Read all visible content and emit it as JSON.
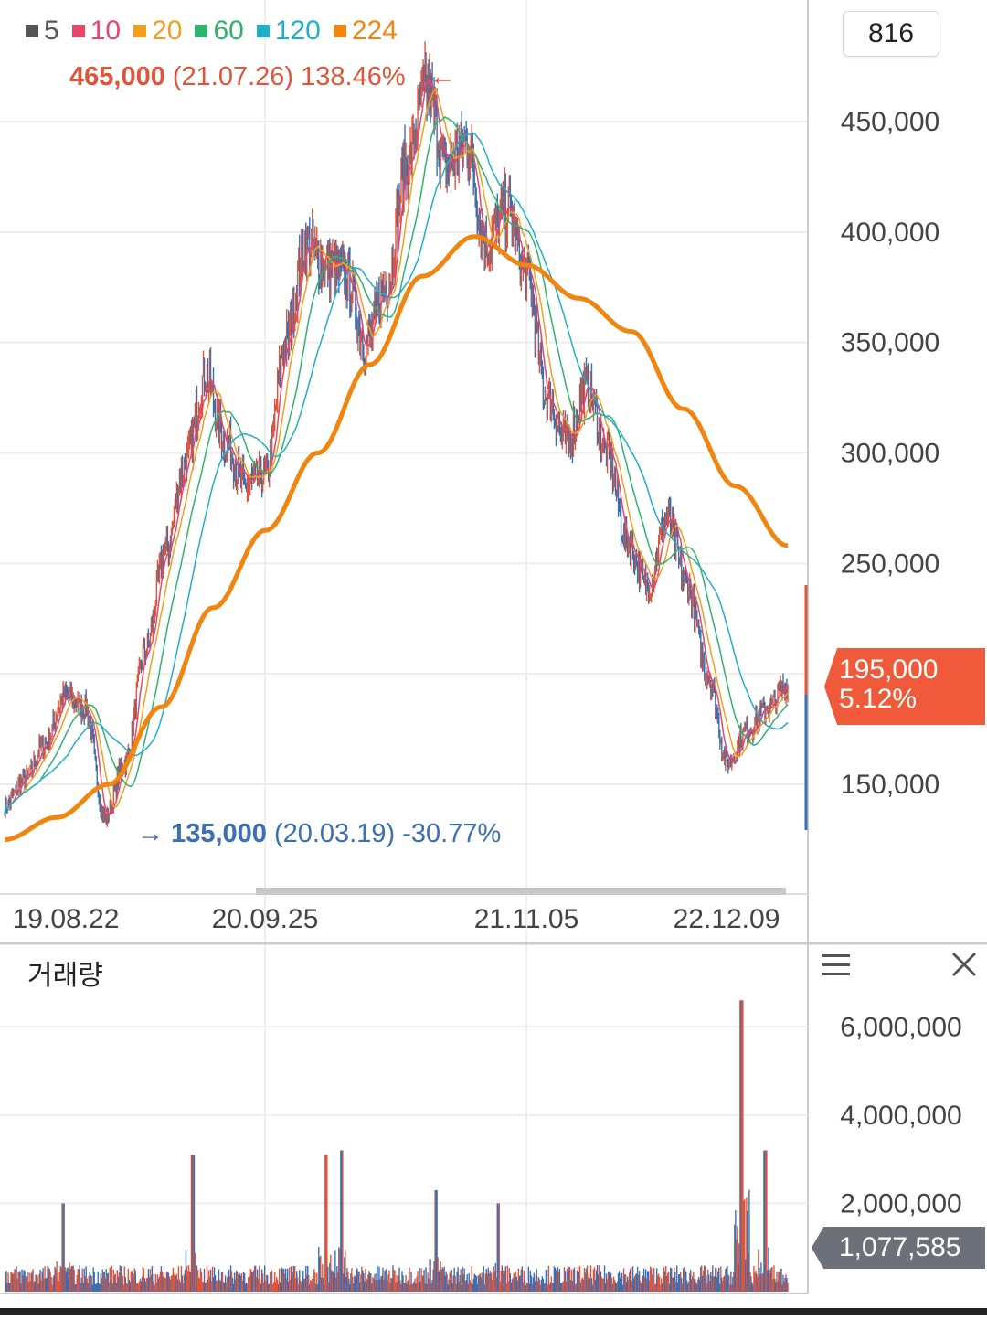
{
  "header": {
    "count_label": "816"
  },
  "legend": [
    {
      "label": "5",
      "color": "#555555"
    },
    {
      "label": "10",
      "color": "#e8466a"
    },
    {
      "label": "20",
      "color": "#f0a01e"
    },
    {
      "label": "60",
      "color": "#2fb36e"
    },
    {
      "label": "120",
      "color": "#1fb0c9"
    },
    {
      "label": "224",
      "color": "#f0850f"
    }
  ],
  "annotations": {
    "high": {
      "price": "465,000",
      "date": "(21.07.26)",
      "pct": "138.46%",
      "arrow": "←",
      "color": "#e0553a"
    },
    "low": {
      "arrow": "→",
      "price": "135,000",
      "date": "(20.03.19)",
      "pct": "-30.77%",
      "color": "#3a6fb3"
    }
  },
  "current": {
    "price": "195,000",
    "change": "5.12%"
  },
  "volume_panel": {
    "title": "거래량",
    "current_volume": "1,077,585"
  },
  "chart_data": [
    {
      "type": "line",
      "title": "",
      "y_axis_labels": [
        "450,000",
        "400,000",
        "350,000",
        "300,000",
        "250,000",
        "150,000"
      ],
      "y_ticks": [
        450000,
        400000,
        350000,
        300000,
        250000,
        200000,
        150000
      ],
      "ylim": [
        120000,
        480000
      ],
      "x_tick_labels": [
        "19.08.22",
        "20.09.25",
        "21.11.05",
        "22.12.09"
      ],
      "grid": true,
      "price_keypoints": [
        [
          "19.08.22",
          140000
        ],
        [
          "19.09",
          152000
        ],
        [
          "19.11",
          168000
        ],
        [
          "20.01",
          190000
        ],
        [
          "20.02",
          185000
        ],
        [
          "20.03.19",
          135000
        ],
        [
          "20.04",
          160000
        ],
        [
          "20.05",
          210000
        ],
        [
          "20.06",
          255000
        ],
        [
          "20.07",
          295000
        ],
        [
          "20.08",
          335000
        ],
        [
          "20.09",
          305000
        ],
        [
          "20.10",
          285000
        ],
        [
          "20.11",
          290000
        ],
        [
          "20.12",
          350000
        ],
        [
          "21.01",
          395000
        ],
        [
          "21.02",
          385000
        ],
        [
          "21.03",
          380000
        ],
        [
          "21.04",
          350000
        ],
        [
          "21.05",
          375000
        ],
        [
          "21.06",
          430000
        ],
        [
          "21.07.26",
          465000
        ],
        [
          "21.08",
          430000
        ],
        [
          "21.09",
          440000
        ],
        [
          "21.10",
          395000
        ],
        [
          "21.11",
          410000
        ],
        [
          "21.12",
          380000
        ],
        [
          "22.01",
          325000
        ],
        [
          "22.02",
          305000
        ],
        [
          "22.03",
          330000
        ],
        [
          "22.04",
          300000
        ],
        [
          "22.05",
          260000
        ],
        [
          "22.06",
          240000
        ],
        [
          "22.07",
          270000
        ],
        [
          "22.08",
          240000
        ],
        [
          "22.09",
          200000
        ],
        [
          "22.10",
          160000
        ],
        [
          "22.11",
          175000
        ],
        [
          "22.12",
          185000
        ],
        [
          "23.01",
          195000
        ]
      ],
      "ma224_keypoints": [
        [
          "19.08",
          125000
        ],
        [
          "19.12",
          135000
        ],
        [
          "20.03",
          150000
        ],
        [
          "20.06",
          185000
        ],
        [
          "20.09",
          230000
        ],
        [
          "20.12",
          265000
        ],
        [
          "21.03",
          300000
        ],
        [
          "21.06",
          340000
        ],
        [
          "21.09",
          380000
        ],
        [
          "21.11",
          398000
        ],
        [
          "22.01",
          385000
        ],
        [
          "22.03",
          370000
        ],
        [
          "22.05",
          355000
        ],
        [
          "22.07",
          320000
        ],
        [
          "22.09",
          285000
        ],
        [
          "22.11",
          258000
        ]
      ]
    },
    {
      "type": "bar",
      "title": "거래량",
      "y_axis_labels": [
        "6,000,000",
        "4,000,000",
        "2,000,000"
      ],
      "y_ticks": [
        6000000,
        4000000,
        2000000
      ],
      "ylim": [
        0,
        6400000
      ],
      "spikes": [
        {
          "pos": 0.075,
          "value": 2000000
        },
        {
          "pos": 0.24,
          "value": 3100000
        },
        {
          "pos": 0.41,
          "value": 3100000
        },
        {
          "pos": 0.43,
          "value": 3200000
        },
        {
          "pos": 0.55,
          "value": 2300000
        },
        {
          "pos": 0.63,
          "value": 2000000
        },
        {
          "pos": 0.94,
          "value": 6600000
        },
        {
          "pos": 0.97,
          "value": 3200000
        }
      ],
      "baseline_volume": 500000
    }
  ]
}
